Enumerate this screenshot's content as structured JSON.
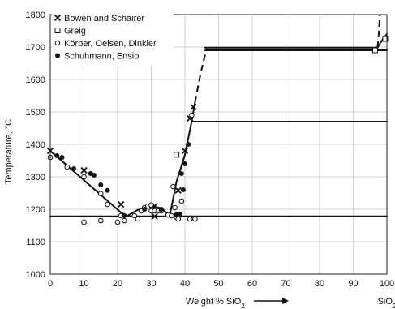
{
  "chart_data": {
    "type": "scatter",
    "title": "",
    "xlabel": "Weight % SiO",
    "xlabel_subscript": "2",
    "ylabel": "Temperature, °C",
    "x_end_label": "SiO",
    "x_end_label_subscript": "2",
    "xlim": [
      0,
      100
    ],
    "ylim": [
      1000,
      1800
    ],
    "xticks": [
      0,
      10,
      20,
      30,
      40,
      50,
      60,
      70,
      80,
      90,
      100
    ],
    "yticks": [
      1000,
      1100,
      1200,
      1300,
      1400,
      1500,
      1600,
      1700,
      1800
    ],
    "grid": true,
    "legend_position": "top-left",
    "series": [
      {
        "name": "Bowen and Schairer",
        "marker": "x",
        "points": [
          [
            0,
            1380
          ],
          [
            10,
            1320
          ],
          [
            21,
            1215
          ],
          [
            31,
            1210
          ],
          [
            31,
            1178
          ],
          [
            38,
            1258
          ],
          [
            40,
            1380
          ],
          [
            41.5,
            1480
          ],
          [
            42.5,
            1515
          ]
        ]
      },
      {
        "name": "Greig",
        "marker": "open-square",
        "points": [
          [
            37.5,
            1368
          ],
          [
            96.5,
            1690
          ],
          [
            99.5,
            1725
          ]
        ]
      },
      {
        "name": "Körber, Oelsen, Dinkler",
        "marker": "open-circle",
        "points": [
          [
            0,
            1360
          ],
          [
            5,
            1330
          ],
          [
            10,
            1300
          ],
          [
            10,
            1160
          ],
          [
            15,
            1248
          ],
          [
            15,
            1165
          ],
          [
            17,
            1215
          ],
          [
            20,
            1160
          ],
          [
            21,
            1180
          ],
          [
            22,
            1165
          ],
          [
            25,
            1180
          ],
          [
            26,
            1170
          ],
          [
            27,
            1195
          ],
          [
            28,
            1205
          ],
          [
            29,
            1210
          ],
          [
            30,
            1213
          ],
          [
            30,
            1195
          ],
          [
            31,
            1195
          ],
          [
            32,
            1195
          ],
          [
            33,
            1195
          ],
          [
            35,
            1182
          ],
          [
            36,
            1180
          ],
          [
            36.5,
            1270
          ],
          [
            37,
            1205
          ],
          [
            37.5,
            1175
          ],
          [
            38,
            1180
          ],
          [
            38,
            1170
          ],
          [
            39,
            1225
          ],
          [
            41.5,
            1170
          ],
          [
            42,
            1490
          ],
          [
            43,
            1170
          ]
        ]
      },
      {
        "name": "Schuhmann, Ensio",
        "marker": "filled-circle",
        "points": [
          [
            2,
            1365
          ],
          [
            3.5,
            1360
          ],
          [
            7,
            1325
          ],
          [
            12,
            1310
          ],
          [
            13,
            1305
          ],
          [
            15,
            1275
          ],
          [
            17,
            1258
          ],
          [
            22,
            1180
          ],
          [
            28,
            1200
          ],
          [
            33,
            1200
          ],
          [
            37.5,
            1183
          ],
          [
            38.5,
            1185
          ],
          [
            39,
            1310
          ],
          [
            39.5,
            1260
          ],
          [
            40,
            1340
          ],
          [
            41,
            1400
          ]
        ]
      }
    ],
    "curves": [
      {
        "style": "solid",
        "points": [
          [
            0,
            1380
          ],
          [
            21,
            1190
          ]
        ]
      },
      {
        "style": "solid",
        "points": [
          [
            21,
            1190
          ],
          [
            23,
            1180
          ]
        ]
      },
      {
        "style": "solid",
        "points": [
          [
            23,
            1180
          ],
          [
            26,
            1198
          ],
          [
            30,
            1210
          ],
          [
            33,
            1203
          ],
          [
            35.5,
            1180
          ]
        ]
      },
      {
        "style": "solid",
        "points": [
          [
            35.5,
            1180
          ],
          [
            37.5,
            1285
          ],
          [
            40,
            1368
          ],
          [
            42,
            1470
          ],
          [
            43,
            1530
          ]
        ]
      },
      {
        "style": "dashed",
        "points": [
          [
            43,
            1530
          ],
          [
            44.5,
            1610
          ],
          [
            45.6,
            1660
          ],
          [
            46.5,
            1695
          ]
        ]
      },
      {
        "style": "dashed",
        "points": [
          [
            97.2,
            1698
          ],
          [
            97.6,
            1740
          ],
          [
            97.9,
            1800
          ]
        ]
      },
      {
        "style": "solid",
        "points": [
          [
            96.5,
            1698
          ],
          [
            97.2,
            1698
          ]
        ]
      },
      {
        "style": "solid",
        "points": [
          [
            97.2,
            1698
          ],
          [
            98.5,
            1720
          ],
          [
            100,
            1740
          ]
        ]
      },
      {
        "style": "solid",
        "points": [
          [
            0,
            1178
          ],
          [
            100,
            1178
          ]
        ]
      },
      {
        "style": "solid",
        "points": [
          [
            42,
            1470
          ],
          [
            100,
            1470
          ]
        ]
      },
      {
        "style": "solid",
        "points": [
          [
            46,
            1690
          ],
          [
            100,
            1690
          ]
        ]
      },
      {
        "style": "solid",
        "points": [
          [
            46,
            1698
          ],
          [
            97.2,
            1698
          ]
        ]
      }
    ]
  }
}
